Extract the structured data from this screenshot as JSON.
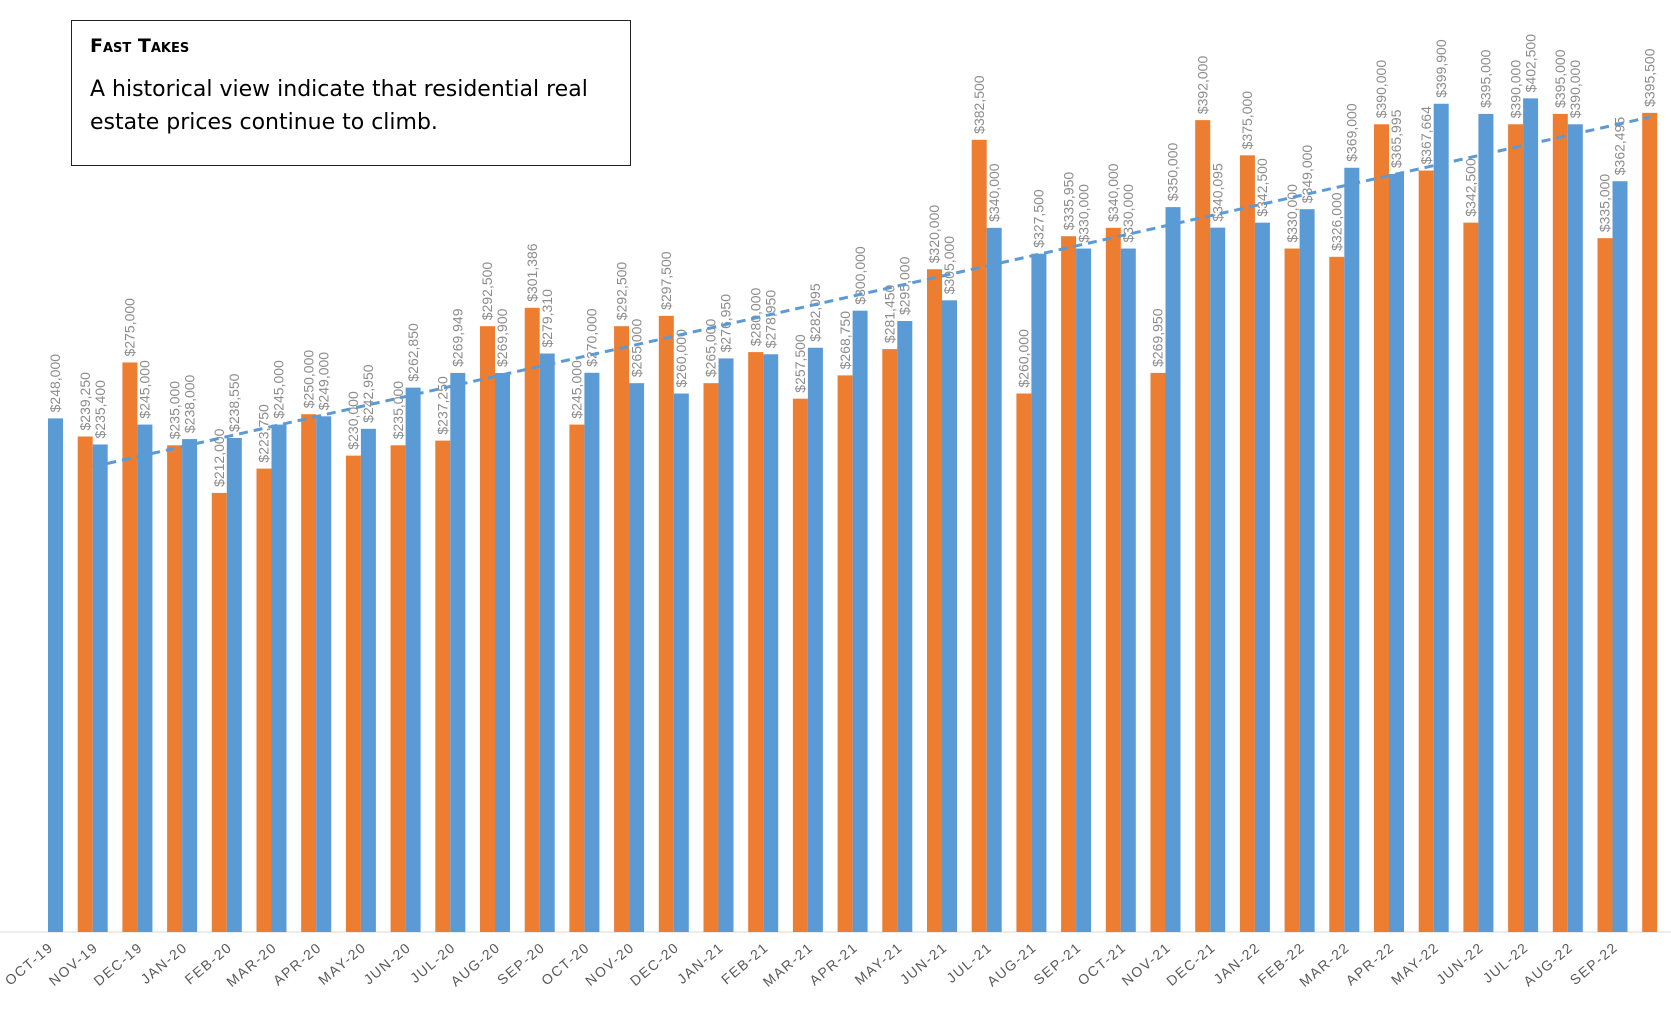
{
  "callout": {
    "title": "Fast Takes",
    "text": "A historical view indicate that residential real estate prices continue to climb."
  },
  "chart_data": {
    "type": "bar",
    "categories": [
      "OCT-19",
      "NOV-19",
      "DEC-19",
      "JAN-20",
      "FEB-20",
      "MAR-20",
      "APR-20",
      "MAY-20",
      "JUN-20",
      "JUL-20",
      "AUG-20",
      "SEP-20",
      "OCT-20",
      "NOV-20",
      "DEC-20",
      "JAN-21",
      "FEB-21",
      "MAR-21",
      "APR-21",
      "MAY-21",
      "JUN-21",
      "JUL-21",
      "AUG-21",
      "SEP-21",
      "OCT-21",
      "NOV-21",
      "DEC-21",
      "JAN-22",
      "FEB-22",
      "MAR-22",
      "APR-22",
      "MAY-22",
      "JUN-22",
      "JUL-22",
      "AUG-22",
      "SEP-22",
      null
    ],
    "series": [
      {
        "color": "#ed7d31",
        "values": [
          null,
          239250,
          275000,
          235000,
          212000,
          223750,
          250000,
          230000,
          235000,
          237250,
          292500,
          301386,
          245000,
          292500,
          297500,
          265000,
          280000,
          257500,
          268750,
          281450,
          320000,
          382500,
          260000,
          335950,
          340000,
          269950,
          392000,
          375000,
          330000,
          326000,
          390000,
          367664,
          342500,
          390000,
          395000,
          335000,
          395500
        ],
        "value_labels": [
          null,
          "$239,250",
          "$275,000",
          "$235,000",
          "$212,000",
          "$223,750",
          "$250,000",
          "$230,000",
          "$235,000",
          "$237,250",
          "$292,500",
          "$301,386",
          "$245,000",
          "$292,500",
          "$297,500",
          "$265,000",
          "$280,000",
          "$257,500",
          "$268,750",
          "$281,450",
          "$320,000",
          "$382,500",
          "$260,000",
          "$335,950",
          "$340,000",
          "$269,950",
          "$392,000",
          "$375,000",
          "$330,000",
          "$326,000",
          "$390,000",
          "$367,664",
          "$342,500",
          "$390,000",
          "$395,000",
          "$335,000",
          "$395,500"
        ]
      },
      {
        "color": "#5b9bd5",
        "values": [
          248000,
          235400,
          245000,
          238000,
          238550,
          245000,
          249000,
          242950,
          262850,
          269949,
          269900,
          279310,
          270000,
          265000,
          260000,
          276950,
          278950,
          282095,
          300000,
          295000,
          305000,
          340000,
          327500,
          330000,
          330000,
          350000,
          340095,
          342500,
          349000,
          369000,
          365995,
          399900,
          395000,
          402500,
          390000,
          362495,
          null
        ],
        "value_labels": [
          "$248,000",
          "$235,400",
          "$245,000",
          "$238,000",
          "$238,550",
          "$245,000",
          "$249,000",
          "$242,950",
          "$262,850",
          "$269,949",
          "$269,900",
          "$279,310",
          "$270,000",
          "$265,000",
          "$260,000",
          "$276,950",
          "$278,950",
          "$282,095",
          "$300,000",
          "$295,000",
          "$305,000",
          "$340,000",
          "$327,500",
          "$330,000",
          "$330,000",
          "$350,000",
          "$340,095",
          "$342,500",
          "$349,000",
          "$369,000",
          "$365,995",
          "$399,900",
          "$395,000",
          "$402,500",
          "$390,000",
          "$362,495",
          null
        ]
      }
    ],
    "ylim": [
      0,
      450000
    ],
    "trendline": {
      "series": 1,
      "color": "#5b9bd5",
      "dashed": true
    }
  }
}
